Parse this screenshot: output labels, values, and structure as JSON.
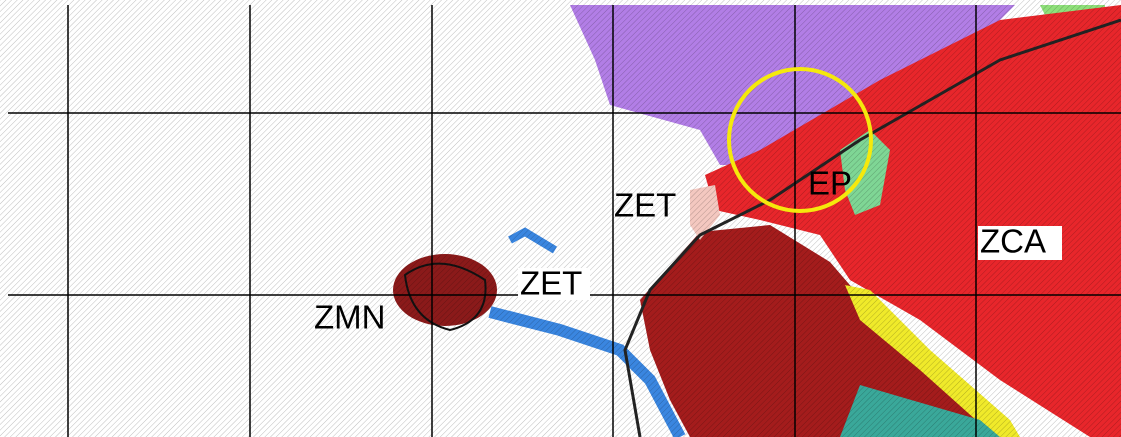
{
  "map": {
    "labels": [
      "ZET",
      "ZET",
      "ZMN",
      "EP",
      "ZCA"
    ]
  }
}
